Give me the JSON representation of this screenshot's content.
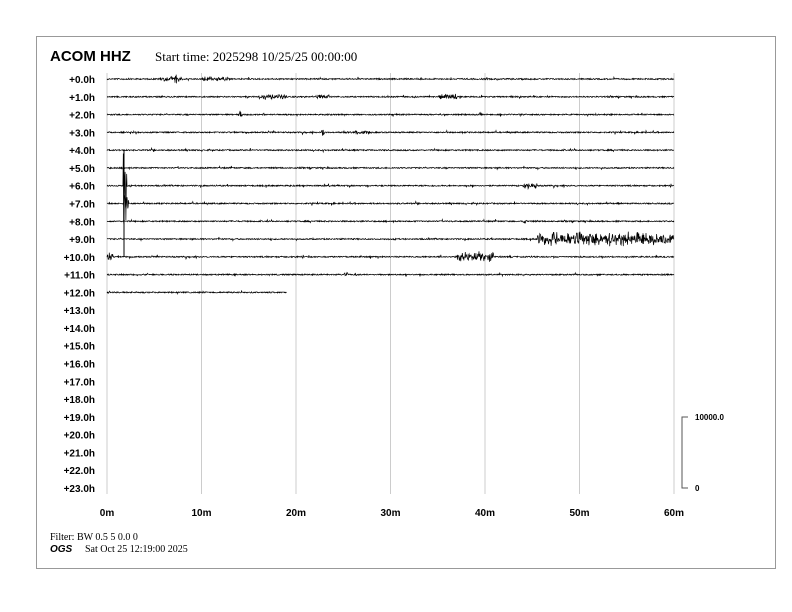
{
  "header": {
    "station": "ACOM HHZ",
    "start_time": "Start time: 2025298 10/25/25 00:00:00"
  },
  "footer": {
    "filter": "Filter: BW 0.5 5 0.0 0",
    "org": "OGS",
    "timestamp": "Sat Oct 25 12:19:00 2025"
  },
  "chart_data": {
    "type": "line",
    "title": "ACOM HHZ",
    "row_labels": [
      "+0.0h",
      "+1.0h",
      "+2.0h",
      "+3.0h",
      "+4.0h",
      "+5.0h",
      "+6.0h",
      "+7.0h",
      "+8.0h",
      "+9.0h",
      "+10.0h",
      "+11.0h",
      "+12.0h",
      "+13.0h",
      "+14.0h",
      "+15.0h",
      "+16.0h",
      "+17.0h",
      "+18.0h",
      "+19.0h",
      "+20.0h",
      "+21.0h",
      "+22.0h",
      "+23.0h"
    ],
    "x_ticks": [
      {
        "value": 0,
        "label": "0m"
      },
      {
        "value": 10,
        "label": "10m"
      },
      {
        "value": 20,
        "label": "20m"
      },
      {
        "value": 30,
        "label": "30m"
      },
      {
        "value": 40,
        "label": "40m"
      },
      {
        "value": 50,
        "label": "50m"
      },
      {
        "value": 60,
        "label": "60m"
      }
    ],
    "xlim": [
      0,
      60
    ],
    "grid": true,
    "data_end": {
      "hour": 12,
      "minute": 19
    },
    "scale_bar": {
      "top_label": "10000.0",
      "bottom_label": "0"
    },
    "events": [
      {
        "hour": 0,
        "start": 5.5,
        "end": 8,
        "amp": 3
      },
      {
        "hour": 0,
        "start": 7.2,
        "end": 7.4,
        "amp": 7
      },
      {
        "hour": 0,
        "start": 10,
        "end": 13,
        "amp": 2.5
      },
      {
        "hour": 1,
        "start": 16,
        "end": 19,
        "amp": 3
      },
      {
        "hour": 1,
        "start": 22,
        "end": 23.5,
        "amp": 2.5
      },
      {
        "hour": 1,
        "start": 35,
        "end": 37,
        "amp": 3
      },
      {
        "hour": 2,
        "start": 14,
        "end": 14.3,
        "amp": 4
      },
      {
        "hour": 3,
        "start": 22.7,
        "end": 23,
        "amp": 5
      },
      {
        "hour": 3,
        "start": 25,
        "end": 28,
        "amp": 2
      },
      {
        "hour": 6,
        "start": 44,
        "end": 45.5,
        "amp": 4
      },
      {
        "hour": 6,
        "start": 1.7,
        "end": 2.1,
        "amp": 60
      },
      {
        "hour": 7,
        "start": 1.7,
        "end": 2.3,
        "amp": 12
      },
      {
        "hour": 8,
        "start": 44,
        "end": 44.4,
        "amp": 3
      },
      {
        "hour": 9,
        "start": 45.5,
        "end": 60,
        "amp": 8
      },
      {
        "hour": 10,
        "start": 0,
        "end": 0.6,
        "amp": 6
      },
      {
        "hour": 10,
        "start": 37,
        "end": 41,
        "amp": 6
      },
      {
        "hour": 11,
        "start": 25,
        "end": 25.5,
        "amp": 3
      }
    ]
  }
}
